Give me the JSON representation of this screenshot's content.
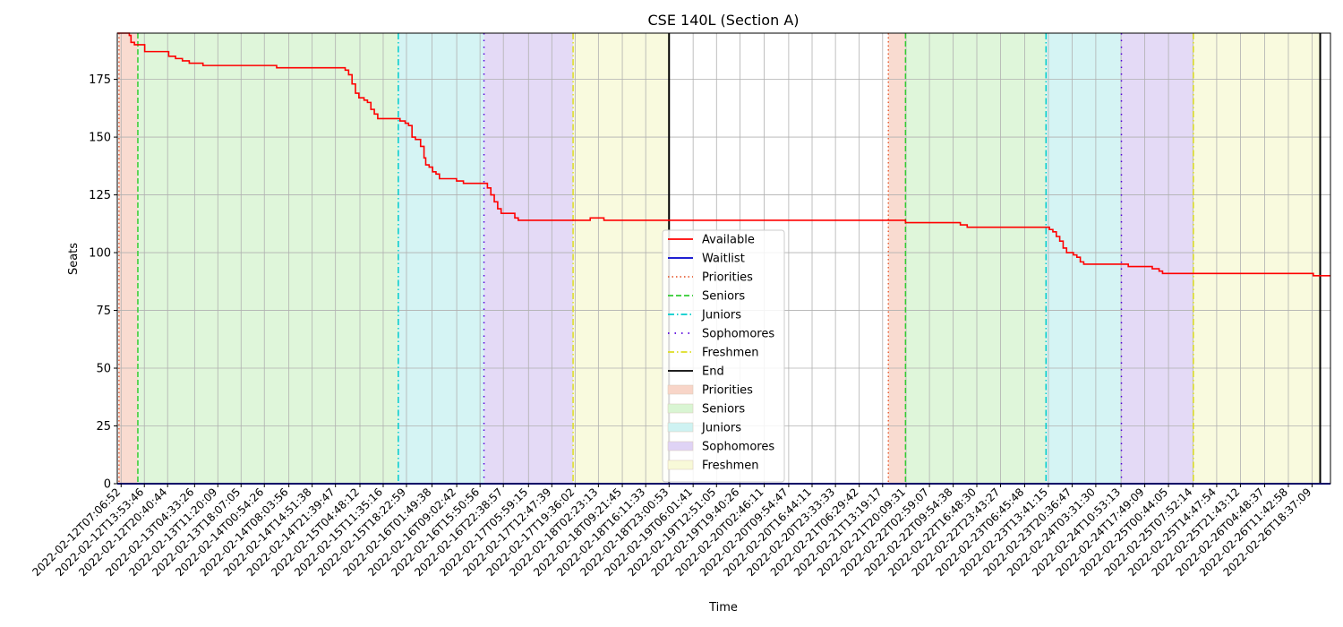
{
  "chart_data": {
    "type": "line",
    "title": "CSE 140L (Section A)",
    "xlabel": "Time",
    "ylabel": "Seats",
    "x_range": [
      "2022-02-12T06:00:00",
      "2022-02-27T00:00:00"
    ],
    "ylim": [
      0,
      195
    ],
    "y_ticks": [
      0,
      25,
      50,
      75,
      100,
      125,
      150,
      175
    ],
    "grid": true,
    "legend_position": "center",
    "x_ticks": [
      "2022-02-12T07:06:52",
      "2022-02-12T13:53:46",
      "2022-02-12T20:40:44",
      "2022-02-13T04:33:26",
      "2022-02-13T11:20:09",
      "2022-02-13T18:07:05",
      "2022-02-14T00:54:26",
      "2022-02-14T08:03:56",
      "2022-02-14T14:51:38",
      "2022-02-14T21:39:47",
      "2022-02-15T04:48:12",
      "2022-02-15T11:35:16",
      "2022-02-15T18:22:59",
      "2022-02-16T01:49:38",
      "2022-02-16T09:02:42",
      "2022-02-16T15:50:56",
      "2022-02-16T22:38:57",
      "2022-02-17T05:59:15",
      "2022-02-17T12:47:39",
      "2022-02-17T19:36:02",
      "2022-02-18T02:23:13",
      "2022-02-18T09:21:45",
      "2022-02-18T16:11:33",
      "2022-02-18T23:00:53",
      "2022-02-19T06:01:41",
      "2022-02-19T12:51:05",
      "2022-02-19T19:40:26",
      "2022-02-20T02:46:11",
      "2022-02-20T09:54:47",
      "2022-02-20T16:44:11",
      "2022-02-20T23:33:33",
      "2022-02-21T06:29:42",
      "2022-02-21T13:19:17",
      "2022-02-21T20:09:31",
      "2022-02-22T02:59:07",
      "2022-02-22T09:54:38",
      "2022-02-22T16:48:30",
      "2022-02-22T23:43:27",
      "2022-02-23T06:45:48",
      "2022-02-23T13:41:15",
      "2022-02-23T20:36:47",
      "2022-02-24T03:31:30",
      "2022-02-24T10:53:13",
      "2022-02-24T17:49:09",
      "2022-02-25T00:44:05",
      "2022-02-25T07:52:14",
      "2022-02-25T14:47:54",
      "2022-02-25T21:43:12",
      "2022-02-26T04:48:37",
      "2022-02-26T11:42:58",
      "2022-02-26T18:37:09"
    ],
    "series": [
      {
        "name": "Available",
        "color": "#ff0000",
        "points": [
          [
            "2022-02-12T06:00:00",
            195
          ],
          [
            "2022-02-12T08:00:00",
            195
          ],
          [
            "2022-02-12T09:30:00",
            194
          ],
          [
            "2022-02-12T10:00:00",
            191
          ],
          [
            "2022-02-12T11:00:00",
            190
          ],
          [
            "2022-02-12T13:00:00",
            190
          ],
          [
            "2022-02-12T14:00:00",
            187
          ],
          [
            "2022-02-12T20:00:00",
            187
          ],
          [
            "2022-02-12T21:00:00",
            185
          ],
          [
            "2022-02-12T23:00:00",
            184
          ],
          [
            "2022-02-13T01:00:00",
            183
          ],
          [
            "2022-02-13T03:00:00",
            182
          ],
          [
            "2022-02-13T06:00:00",
            182
          ],
          [
            "2022-02-13T07:00:00",
            181
          ],
          [
            "2022-02-14T04:00:00",
            181
          ],
          [
            "2022-02-14T04:30:00",
            180
          ],
          [
            "2022-02-14T23:00:00",
            180
          ],
          [
            "2022-02-15T00:30:00",
            179
          ],
          [
            "2022-02-15T01:30:00",
            177
          ],
          [
            "2022-02-15T02:30:00",
            173
          ],
          [
            "2022-02-15T03:30:00",
            169
          ],
          [
            "2022-02-15T04:30:00",
            167
          ],
          [
            "2022-02-15T06:00:00",
            166
          ],
          [
            "2022-02-15T07:00:00",
            165
          ],
          [
            "2022-02-15T08:00:00",
            162
          ],
          [
            "2022-02-15T09:00:00",
            160
          ],
          [
            "2022-02-15T10:00:00",
            158
          ],
          [
            "2022-02-15T16:00:00",
            158
          ],
          [
            "2022-02-15T16:30:00",
            157
          ],
          [
            "2022-02-15T18:00:00",
            156
          ],
          [
            "2022-02-15T19:00:00",
            155
          ],
          [
            "2022-02-15T20:00:00",
            150
          ],
          [
            "2022-02-15T21:00:00",
            149
          ],
          [
            "2022-02-15T22:30:00",
            146
          ],
          [
            "2022-02-15T23:30:00",
            141
          ],
          [
            "2022-02-16T00:00:00",
            138
          ],
          [
            "2022-02-16T01:00:00",
            137
          ],
          [
            "2022-02-16T02:00:00",
            135
          ],
          [
            "2022-02-16T03:00:00",
            134
          ],
          [
            "2022-02-16T04:00:00",
            132
          ],
          [
            "2022-02-16T08:00:00",
            132
          ],
          [
            "2022-02-16T09:00:00",
            131
          ],
          [
            "2022-02-16T11:00:00",
            130
          ],
          [
            "2022-02-16T17:00:00",
            130
          ],
          [
            "2022-02-16T18:00:00",
            128
          ],
          [
            "2022-02-16T19:00:00",
            125
          ],
          [
            "2022-02-16T20:00:00",
            122
          ],
          [
            "2022-02-16T21:00:00",
            119
          ],
          [
            "2022-02-16T22:00:00",
            117
          ],
          [
            "2022-02-17T01:00:00",
            117
          ],
          [
            "2022-02-17T02:00:00",
            115
          ],
          [
            "2022-02-17T03:00:00",
            114
          ],
          [
            "2022-02-17T23:00:00",
            114
          ],
          [
            "2022-02-18T00:00:00",
            115
          ],
          [
            "2022-02-18T03:00:00",
            115
          ],
          [
            "2022-02-18T04:00:00",
            114
          ],
          [
            "2022-02-21T19:00:00",
            114
          ],
          [
            "2022-02-21T20:00:00",
            113
          ],
          [
            "2022-02-22T11:00:00",
            113
          ],
          [
            "2022-02-22T12:00:00",
            112
          ],
          [
            "2022-02-22T14:00:00",
            111
          ],
          [
            "2022-02-23T13:00:00",
            111
          ],
          [
            "2022-02-23T14:00:00",
            110
          ],
          [
            "2022-02-23T15:00:00",
            109
          ],
          [
            "2022-02-23T16:00:00",
            107
          ],
          [
            "2022-02-23T17:00:00",
            105
          ],
          [
            "2022-02-23T18:00:00",
            102
          ],
          [
            "2022-02-23T19:00:00",
            100
          ],
          [
            "2022-02-23T21:00:00",
            99
          ],
          [
            "2022-02-23T22:00:00",
            98
          ],
          [
            "2022-02-23T23:00:00",
            96
          ],
          [
            "2022-02-24T00:00:00",
            95
          ],
          [
            "2022-02-24T12:00:00",
            95
          ],
          [
            "2022-02-24T13:00:00",
            94
          ],
          [
            "2022-02-24T19:00:00",
            94
          ],
          [
            "2022-02-24T20:00:00",
            93
          ],
          [
            "2022-02-24T22:00:00",
            92
          ],
          [
            "2022-02-24T23:00:00",
            91
          ],
          [
            "2022-02-26T18:00:00",
            91
          ],
          [
            "2022-02-26T19:00:00",
            90
          ],
          [
            "2022-02-27T00:00:00",
            90
          ]
        ]
      },
      {
        "name": "Waitlist",
        "color": "#0000cc",
        "points": [
          [
            "2022-02-12T06:00:00",
            0
          ],
          [
            "2022-02-27T00:00:00",
            0
          ]
        ]
      }
    ],
    "phase_lines": [
      {
        "name": "Priorities",
        "color": "#e8643c",
        "style": "dotted",
        "x": [
          "2022-02-12T06:30:00",
          "2022-02-21T15:00:00"
        ]
      },
      {
        "name": "Seniors",
        "color": "#33cc33",
        "style": "dashed",
        "x": [
          "2022-02-12T12:00:00",
          "2022-02-21T20:00:00"
        ]
      },
      {
        "name": "Juniors",
        "color": "#00cccc",
        "style": "dashdot",
        "x": [
          "2022-02-15T16:00:00",
          "2022-02-23T13:00:00"
        ]
      },
      {
        "name": "Sophomores",
        "color": "#5500dd",
        "style": "loosedash",
        "x": [
          "2022-02-16T17:00:00",
          "2022-02-24T11:00:00"
        ]
      },
      {
        "name": "Freshmen",
        "color": "#dddd22",
        "style": "dashdot",
        "x": [
          "2022-02-17T19:00:00",
          "2022-02-25T08:00:00"
        ]
      },
      {
        "name": "End",
        "color": "#000000",
        "style": "solid",
        "x": [
          "2022-02-18T23:00:00",
          "2022-02-26T21:00:00"
        ]
      }
    ],
    "phase_spans": [
      {
        "name": "Priorities",
        "color": "#f8d5c8",
        "ranges": [
          [
            "2022-02-12T06:30:00",
            "2022-02-12T12:00:00"
          ],
          [
            "2022-02-21T15:00:00",
            "2022-02-21T20:00:00"
          ]
        ]
      },
      {
        "name": "Seniors",
        "color": "#d9f5d3",
        "ranges": [
          [
            "2022-02-12T12:00:00",
            "2022-02-15T16:00:00"
          ],
          [
            "2022-02-21T20:00:00",
            "2022-02-23T13:00:00"
          ]
        ]
      },
      {
        "name": "Juniors",
        "color": "#cef2f2",
        "ranges": [
          [
            "2022-02-15T16:00:00",
            "2022-02-16T17:00:00"
          ],
          [
            "2022-02-23T13:00:00",
            "2022-02-24T11:00:00"
          ]
        ]
      },
      {
        "name": "Sophomores",
        "color": "#dfd3f5",
        "ranges": [
          [
            "2022-02-16T17:00:00",
            "2022-02-17T19:00:00"
          ],
          [
            "2022-02-24T11:00:00",
            "2022-02-25T08:00:00"
          ]
        ]
      },
      {
        "name": "Freshmen",
        "color": "#f8f9d8",
        "ranges": [
          [
            "2022-02-17T19:00:00",
            "2022-02-18T23:00:00"
          ],
          [
            "2022-02-25T08:00:00",
            "2022-02-26T21:00:00"
          ]
        ]
      }
    ],
    "legend": [
      {
        "label": "Available",
        "kind": "line",
        "color": "#ff0000",
        "style": "solid"
      },
      {
        "label": "Waitlist",
        "kind": "line",
        "color": "#0000cc",
        "style": "solid"
      },
      {
        "label": "Priorities",
        "kind": "line",
        "color": "#e8643c",
        "style": "dotted"
      },
      {
        "label": "Seniors",
        "kind": "line",
        "color": "#33cc33",
        "style": "dashed"
      },
      {
        "label": "Juniors",
        "kind": "line",
        "color": "#00cccc",
        "style": "dashdot"
      },
      {
        "label": "Sophomores",
        "kind": "line",
        "color": "#5500dd",
        "style": "loosedash"
      },
      {
        "label": "Freshmen",
        "kind": "line",
        "color": "#dddd22",
        "style": "dashdot"
      },
      {
        "label": "End",
        "kind": "line",
        "color": "#000000",
        "style": "solid"
      },
      {
        "label": "Priorities",
        "kind": "patch",
        "color": "#f8d5c8"
      },
      {
        "label": "Seniors",
        "kind": "patch",
        "color": "#d9f5d3"
      },
      {
        "label": "Juniors",
        "kind": "patch",
        "color": "#cef2f2"
      },
      {
        "label": "Sophomores",
        "kind": "patch",
        "color": "#dfd3f5"
      },
      {
        "label": "Freshmen",
        "kind": "patch",
        "color": "#f8f9d8"
      }
    ]
  }
}
